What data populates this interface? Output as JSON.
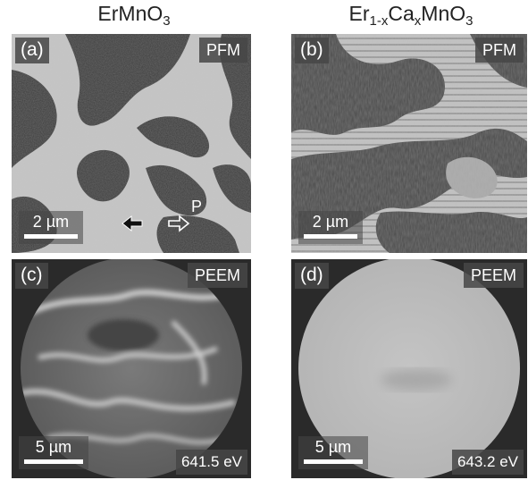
{
  "columns": {
    "left_title_base": "ErMnO",
    "left_title_sub": "3",
    "right_title_parts": [
      "Er",
      "1-x",
      "Ca",
      "x",
      "MnO",
      "3"
    ]
  },
  "panels": {
    "a": {
      "tag": "(a)",
      "mode": "PFM",
      "scale": "2 µm",
      "polarization_label": "P"
    },
    "b": {
      "tag": "(b)",
      "mode": "PFM",
      "scale": "2 µm"
    },
    "c": {
      "tag": "(c)",
      "mode": "PEEM",
      "scale": "5 µm",
      "energy": "641.5 eV"
    },
    "d": {
      "tag": "(d)",
      "mode": "PEEM",
      "scale": "5 µm",
      "energy": "643.2 eV"
    }
  },
  "colors": {
    "domain_dark": "#3a3a3a",
    "domain_light": "#c8c8c8",
    "peem_background": "#2a2a2a",
    "label_box": "#464646"
  }
}
